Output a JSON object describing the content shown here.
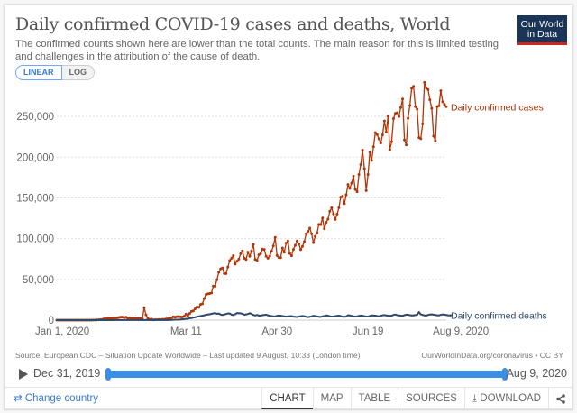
{
  "header": {
    "title": "Daily confirmed COVID-19 cases and deaths, World",
    "subtitle": "The confirmed counts shown here are lower than the total counts. The main reason for this is limited testing and challenges in the attribution of the cause of death.",
    "logo_line1": "Our World",
    "logo_line2": "in Data"
  },
  "scale_toggle": {
    "linear": "LINEAR",
    "log": "LOG",
    "active": "LINEAR"
  },
  "footer": {
    "source": "Source: European CDC – Situation Update Worldwide – Last updated 9 August, 10:33 (London time)",
    "license": "OurWorldInData.org/coronavirus • CC BY",
    "change_country": "Change country",
    "tabs": [
      "CHART",
      "MAP",
      "TABLE",
      "SOURCES",
      "DOWNLOAD"
    ],
    "active_tab": "CHART"
  },
  "timeline": {
    "start": "Dec 31, 2019",
    "end": "Aug 9, 2020",
    "range_start_fraction": 0,
    "range_end_fraction": 1
  },
  "colors": {
    "cases": "#b13507",
    "deaths": "#2f4a6b",
    "accent": "#3a8ee6",
    "grid": "#dddddd"
  },
  "chart_data": {
    "type": "line",
    "title": "Daily confirmed COVID-19 cases and deaths, World",
    "xlabel": "",
    "ylabel": "",
    "x_start": "2019-12-31",
    "x_end": "2020-08-09",
    "x_tick_labels": [
      "Jan 1, 2020",
      "Mar 11",
      "Apr 30",
      "Jun 19",
      "Aug 9, 2020"
    ],
    "x_tick_days": [
      1,
      71,
      121,
      171,
      222
    ],
    "y_ticks": [
      0,
      50000,
      100000,
      150000,
      200000,
      250000
    ],
    "y_tick_labels": [
      "0",
      "50,000",
      "100,000",
      "150,000",
      "200,000",
      "250,000"
    ],
    "ylim": [
      0,
      290000
    ],
    "grid": true,
    "legend": "inline-right",
    "series": [
      {
        "name": "Daily confirmed cases",
        "values": [
          0,
          0,
          0,
          0,
          0,
          0,
          0,
          0,
          0,
          0,
          0,
          0,
          0,
          0,
          0,
          0,
          0,
          0,
          0,
          20,
          150,
          100,
          250,
          450,
          700,
          800,
          1700,
          1700,
          1900,
          2000,
          2100,
          2600,
          2800,
          2800,
          3200,
          3700,
          3800,
          3200,
          3600,
          2500,
          2700,
          2000,
          2600,
          2000,
          2000,
          2000,
          1900,
          1800,
          15200,
          6500,
          2100,
          1000,
          1200,
          400,
          600,
          500,
          700,
          600,
          900,
          1000,
          1400,
          1600,
          1800,
          2700,
          4200,
          3600,
          4300,
          4300,
          4000,
          3900,
          4900,
          7400,
          5300,
          8200,
          10600,
          11400,
          13900,
          16000,
          15600,
          19200,
          20100,
          26400,
          31400,
          32300,
          32600,
          33400,
          41800,
          41500,
          49600,
          58600,
          62900,
          64100,
          57200,
          57100,
          65200,
          73200,
          75900,
          79000,
          68800,
          72200,
          74700,
          81500,
          84800,
          75900,
          74400,
          83400,
          78300,
          85000,
          93000,
          74500,
          73400,
          80100,
          81500,
          87000,
          86600,
          78400,
          75900,
          78600,
          84600,
          91000,
          101500,
          79300,
          76800,
          76700,
          88500,
          83300,
          94500,
          97100,
          81800,
          79000,
          86700,
          91700,
          97100,
          93400,
          86500,
          90500,
          96500,
          106000,
          108800,
          112900,
          106000,
          95000,
          102800,
          107100,
          117500,
          117200,
          125300,
          112200,
          120000,
          124000,
          133500,
          137900,
          130300,
          123700,
          130000,
          138000,
          151000,
          152000,
          143000,
          153900,
          166400,
          161700,
          168300,
          176700,
          160400,
          157600,
          178700,
          190800,
          208700,
          186000,
          159000,
          178800,
          206200,
          196100,
          212800,
          230100,
          227800,
          222500,
          217400,
          227300,
          244500,
          230800,
          250200,
          209000,
          219000,
          247400,
          253700,
          254600,
          250000,
          261000,
          271400,
          221200,
          215000,
          247800,
          263400,
          284400,
          287000,
          262000,
          259000,
          224000,
          222600,
          240900,
          291800,
          285000,
          283000,
          270500,
          260000,
          226000,
          220000,
          262000,
          263000,
          281500,
          268000,
          265000,
          262000
        ],
        "label_position": "right"
      },
      {
        "name": "Daily confirmed deaths",
        "values": [
          0,
          0,
          0,
          0,
          0,
          0,
          0,
          0,
          0,
          0,
          0,
          0,
          0,
          0,
          0,
          0,
          0,
          0,
          0,
          0,
          0,
          3,
          8,
          16,
          15,
          25,
          25,
          25,
          38,
          43,
          46,
          45,
          57,
          64,
          66,
          73,
          73,
          86,
          89,
          97,
          108,
          97,
          146,
          121,
          143,
          142,
          105,
          98,
          139,
          116,
          70,
          100,
          97,
          65,
          71,
          73,
          75,
          68,
          79,
          111,
          108,
          136,
          200,
          300,
          400,
          500,
          600,
          700,
          800,
          1000,
          1200,
          1500,
          1800,
          2300,
          2500,
          3100,
          3500,
          4200,
          4600,
          5000,
          5500,
          6000,
          6500,
          7000,
          7200,
          7800,
          8300,
          8600,
          7900,
          8100,
          6900,
          6300,
          6900,
          7500,
          8200,
          8100,
          6800,
          6200,
          7200,
          8700,
          8400,
          8400,
          7700,
          6600,
          7100,
          7500,
          8500,
          7600,
          6400,
          5800,
          6400,
          5600,
          5500,
          6200,
          6400,
          6700,
          5900,
          5400,
          5000,
          4600,
          4500,
          5300,
          5600,
          5500,
          5000,
          4600,
          4300,
          4600,
          4800,
          5000,
          4300,
          4100,
          3900,
          4400,
          4800,
          5100,
          4800,
          4100,
          3800,
          4100,
          4700,
          5300,
          5000,
          4500,
          4200,
          4000,
          4600,
          5100,
          5800,
          5400,
          4700,
          4400,
          4500,
          4900,
          5200,
          5500,
          4900,
          4300,
          4100,
          4400,
          6000,
          5800,
          5300,
          4700,
          4300,
          4600,
          5200,
          5700,
          5400,
          4800,
          4500,
          4300,
          5200,
          5800,
          5700,
          5500,
          5000,
          4700,
          5300,
          6000,
          6200,
          5800,
          5500,
          5300,
          5500,
          6400,
          6900,
          6200,
          5800,
          5500,
          5400,
          6100,
          6700,
          6600,
          6100,
          5800,
          5900,
          6200,
          6600,
          9800,
          7100,
          6400,
          5800,
          5600,
          6400,
          6900,
          7100,
          6700,
          6300,
          6000,
          5900,
          6500,
          7000,
          6800,
          6300,
          6000,
          5800,
          6000
        ]
      }
    ]
  }
}
